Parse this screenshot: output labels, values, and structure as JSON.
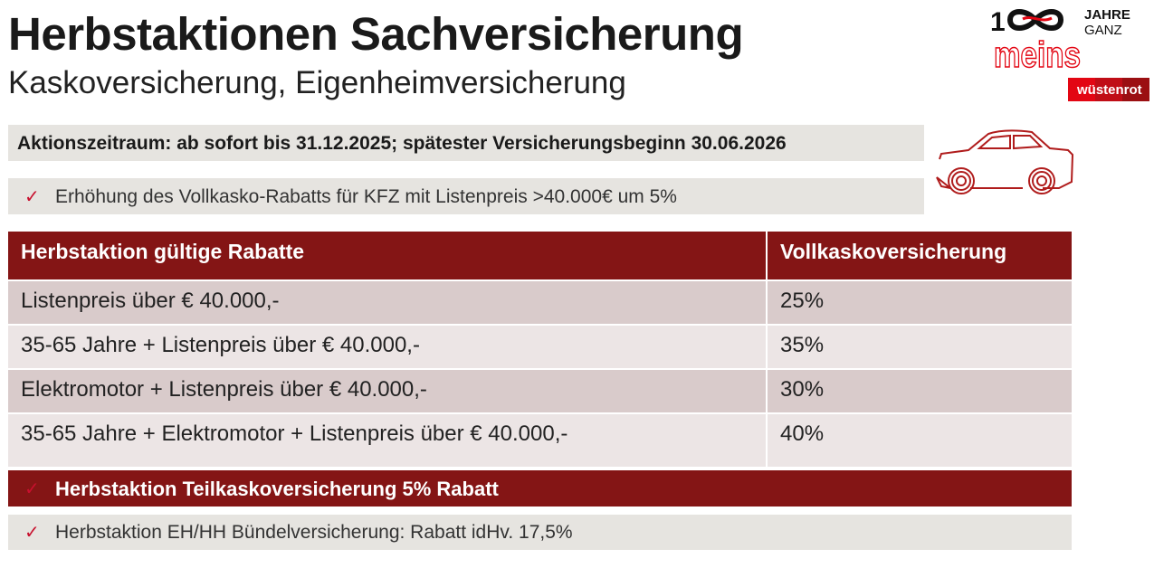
{
  "header": {
    "title": "Herbstaktionen Sachversicherung",
    "subtitle": "Kaskoversicherung, Eigenheimversicherung"
  },
  "logo": {
    "line1": "100",
    "line2": "JAHRE",
    "line3": "GANZ",
    "line4": "meins",
    "brand": "wüstenrot"
  },
  "period": "Aktionszeitraum: ab sofort bis 31.12.2025; spätester Versicherungsbeginn 30.06.2026",
  "hint": "Erhöhung des Vollkasko-Rabatts für KFZ mit Listenpreis >40.000€ um 5%",
  "check_symbol": "✓",
  "table": {
    "headers": [
      "Herbstaktion gültige Rabatte",
      "Vollkaskoversicherung"
    ],
    "rows": [
      [
        "Listenpreis über € 40.000,-",
        "25%"
      ],
      [
        "35-65 Jahre + Listenpreis über € 40.000,-",
        "35%"
      ],
      [
        "Elektromotor + Listenpreis über € 40.000,-",
        "30%"
      ],
      [
        "35-65 Jahre + Elektromotor + Listenpreis über € 40.000,-",
        "40%"
      ]
    ]
  },
  "teilkasko": "Herbstaktion Teilkaskoversicherung 5% Rabatt",
  "bundle": "Herbstaktion EH/HH Bündelversicherung: Rabatt idHv. 17,5%",
  "colors": {
    "brand_dark": "#841515",
    "brand_red": "#e30613",
    "grey": "#e6e4e0"
  }
}
